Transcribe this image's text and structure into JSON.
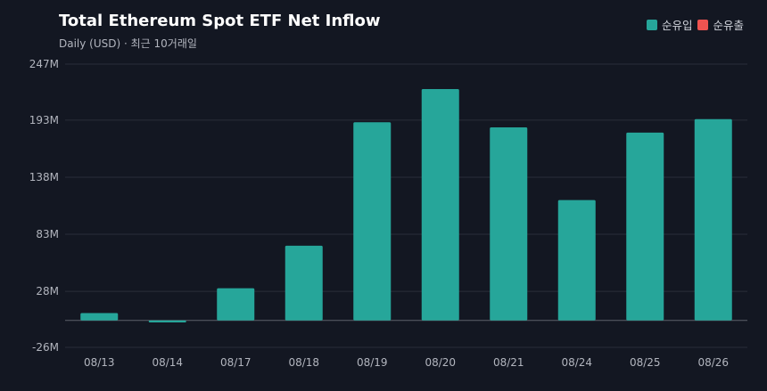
{
  "header": {
    "title": "Total Ethereum Spot ETF Net Inflow",
    "subtitle": "Daily (USD) · 최근 10거래일"
  },
  "legend": {
    "inflow_label": "순유입",
    "outflow_label": "순유출"
  },
  "colors": {
    "inflow": "#26a69a",
    "outflow": "#ef5350",
    "background": "#131722",
    "grid": "#2a2e39"
  },
  "chart_data": {
    "type": "bar",
    "title": "Total Ethereum Spot ETF Net Inflow",
    "subtitle": "Daily (USD) · 최근 10거래일",
    "categories": [
      "08/13",
      "08/14",
      "08/17",
      "08/18",
      "08/19",
      "08/20",
      "08/21",
      "08/24",
      "08/25",
      "08/26"
    ],
    "values": [
      7,
      -2,
      31,
      72,
      191,
      223,
      186,
      116,
      181,
      194
    ],
    "unit": "M",
    "ylim": [
      -26,
      247
    ],
    "yticks": [
      -26,
      28,
      83,
      138,
      193,
      247
    ],
    "ytick_labels": [
      "-26M",
      "28M",
      "83M",
      "138M",
      "193M",
      "247M"
    ],
    "legend": [
      "순유입",
      "순유출"
    ],
    "legend_position": "top-right",
    "grid": true
  }
}
